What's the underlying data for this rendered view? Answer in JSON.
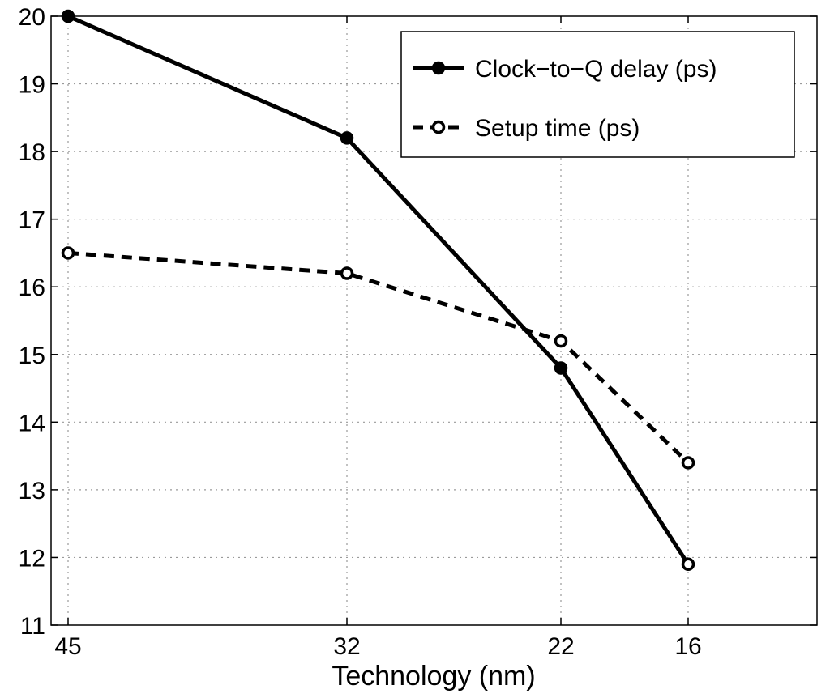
{
  "chart_data": {
    "type": "line",
    "title": "",
    "xlabel": "Technology (nm)",
    "ylabel": "",
    "categories": [
      "45",
      "32",
      "22",
      "16"
    ],
    "x": [
      45,
      32,
      22,
      16
    ],
    "yticks": [
      "11",
      "12",
      "13",
      "14",
      "15",
      "16",
      "17",
      "18",
      "19",
      "20"
    ],
    "ylim": [
      11,
      20
    ],
    "grid": true,
    "legend_position": "top-right",
    "series": [
      {
        "name": "Clock−to−Q delay (ps)",
        "values": [
          20.0,
          18.2,
          14.8,
          11.9
        ],
        "line_style": "solid",
        "marker": "filled-circle",
        "color": "#000000"
      },
      {
        "name": "Setup time (ps)",
        "values": [
          16.5,
          16.2,
          15.2,
          13.4
        ],
        "line_style": "dashed",
        "marker": "open-circle",
        "color": "#000000"
      }
    ]
  }
}
